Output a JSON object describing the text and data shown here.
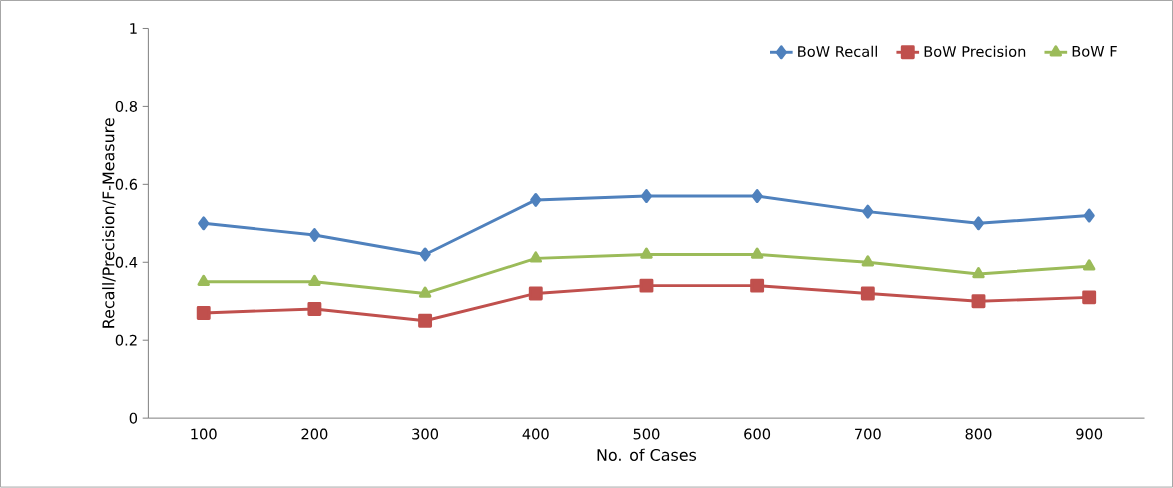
{
  "chart_data": {
    "type": "line",
    "xlabel": "No. of Cases",
    "ylabel": "Recall/Precision/F-Measure",
    "categories": [
      "100",
      "200",
      "300",
      "400",
      "500",
      "600",
      "700",
      "800",
      "900"
    ],
    "series": [
      {
        "name": "BoW Recall",
        "color": "#4f81bd",
        "marker": "diamond",
        "values": [
          0.5,
          0.47,
          0.42,
          0.56,
          0.57,
          0.57,
          0.53,
          0.5,
          0.52
        ]
      },
      {
        "name": "BoW Precision",
        "color": "#c0504d",
        "marker": "square",
        "values": [
          0.27,
          0.28,
          0.25,
          0.32,
          0.34,
          0.34,
          0.32,
          0.3,
          0.31
        ]
      },
      {
        "name": "BoW F",
        "color": "#9bbb59",
        "marker": "triangle",
        "values": [
          0.35,
          0.35,
          0.32,
          0.41,
          0.42,
          0.42,
          0.4,
          0.37,
          0.39
        ]
      }
    ],
    "ylim": [
      0,
      1
    ],
    "yticks": [
      0,
      0.2,
      0.4,
      0.6,
      0.8,
      1
    ],
    "grid": false,
    "legend": "top right",
    "line_style": "solid"
  }
}
